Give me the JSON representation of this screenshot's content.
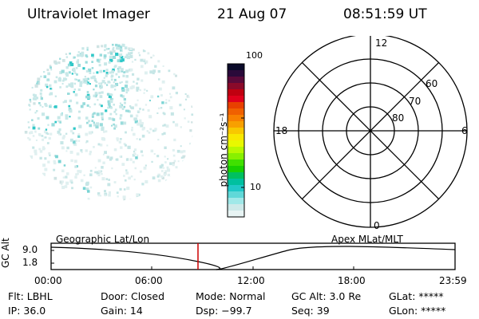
{
  "header": {
    "instrument": "Ultraviolet Imager",
    "date": "21 Aug 07",
    "time": "08:51:59 UT"
  },
  "colorbar": {
    "unit_label": "photon cm⁻²s⁻¹",
    "ticks": [
      "100",
      "10"
    ],
    "colors": [
      "#0b0b2a",
      "#2a0a3a",
      "#5a0a3a",
      "#8a0a2a",
      "#c00010",
      "#e0001c",
      "#e84000",
      "#f06000",
      "#f88000",
      "#f8a000",
      "#f8c800",
      "#f8e800",
      "#e8f800",
      "#b8f800",
      "#88f000",
      "#40e000",
      "#18d000",
      "#00c060",
      "#00c0a0",
      "#20c8c8",
      "#60d8d8",
      "#a0e8e8",
      "#cde9e9",
      "#e8f4f4"
    ]
  },
  "polar_plot": {
    "mlt_labels": {
      "top": "12",
      "left": "18",
      "right": "6",
      "bottom": "0"
    },
    "lat_labels": [
      "60",
      "70",
      "80"
    ]
  },
  "timeline": {
    "left_label": "Geographic Lat/Lon",
    "right_label": "Apex MLat/MLT",
    "axis_label": "GC Alt",
    "y_ticks": [
      "9.0",
      "1.8"
    ],
    "x_ticks": [
      "00:00",
      "06:00",
      "12:00",
      "18:00",
      "23:59"
    ],
    "marker_color": "#cc0000"
  },
  "status": {
    "flt": "Flt: LBHL",
    "ip": "IP: 36.0",
    "door": "Door: Closed",
    "gain": "Gain: 14",
    "mode": "Mode: Normal",
    "dsp": "Dsp:  −99.7",
    "gcalt": "GC Alt: 3.0 Re",
    "seq": "Seq: 39",
    "glat": "GLat: *****",
    "glon": "GLon: *****"
  }
}
